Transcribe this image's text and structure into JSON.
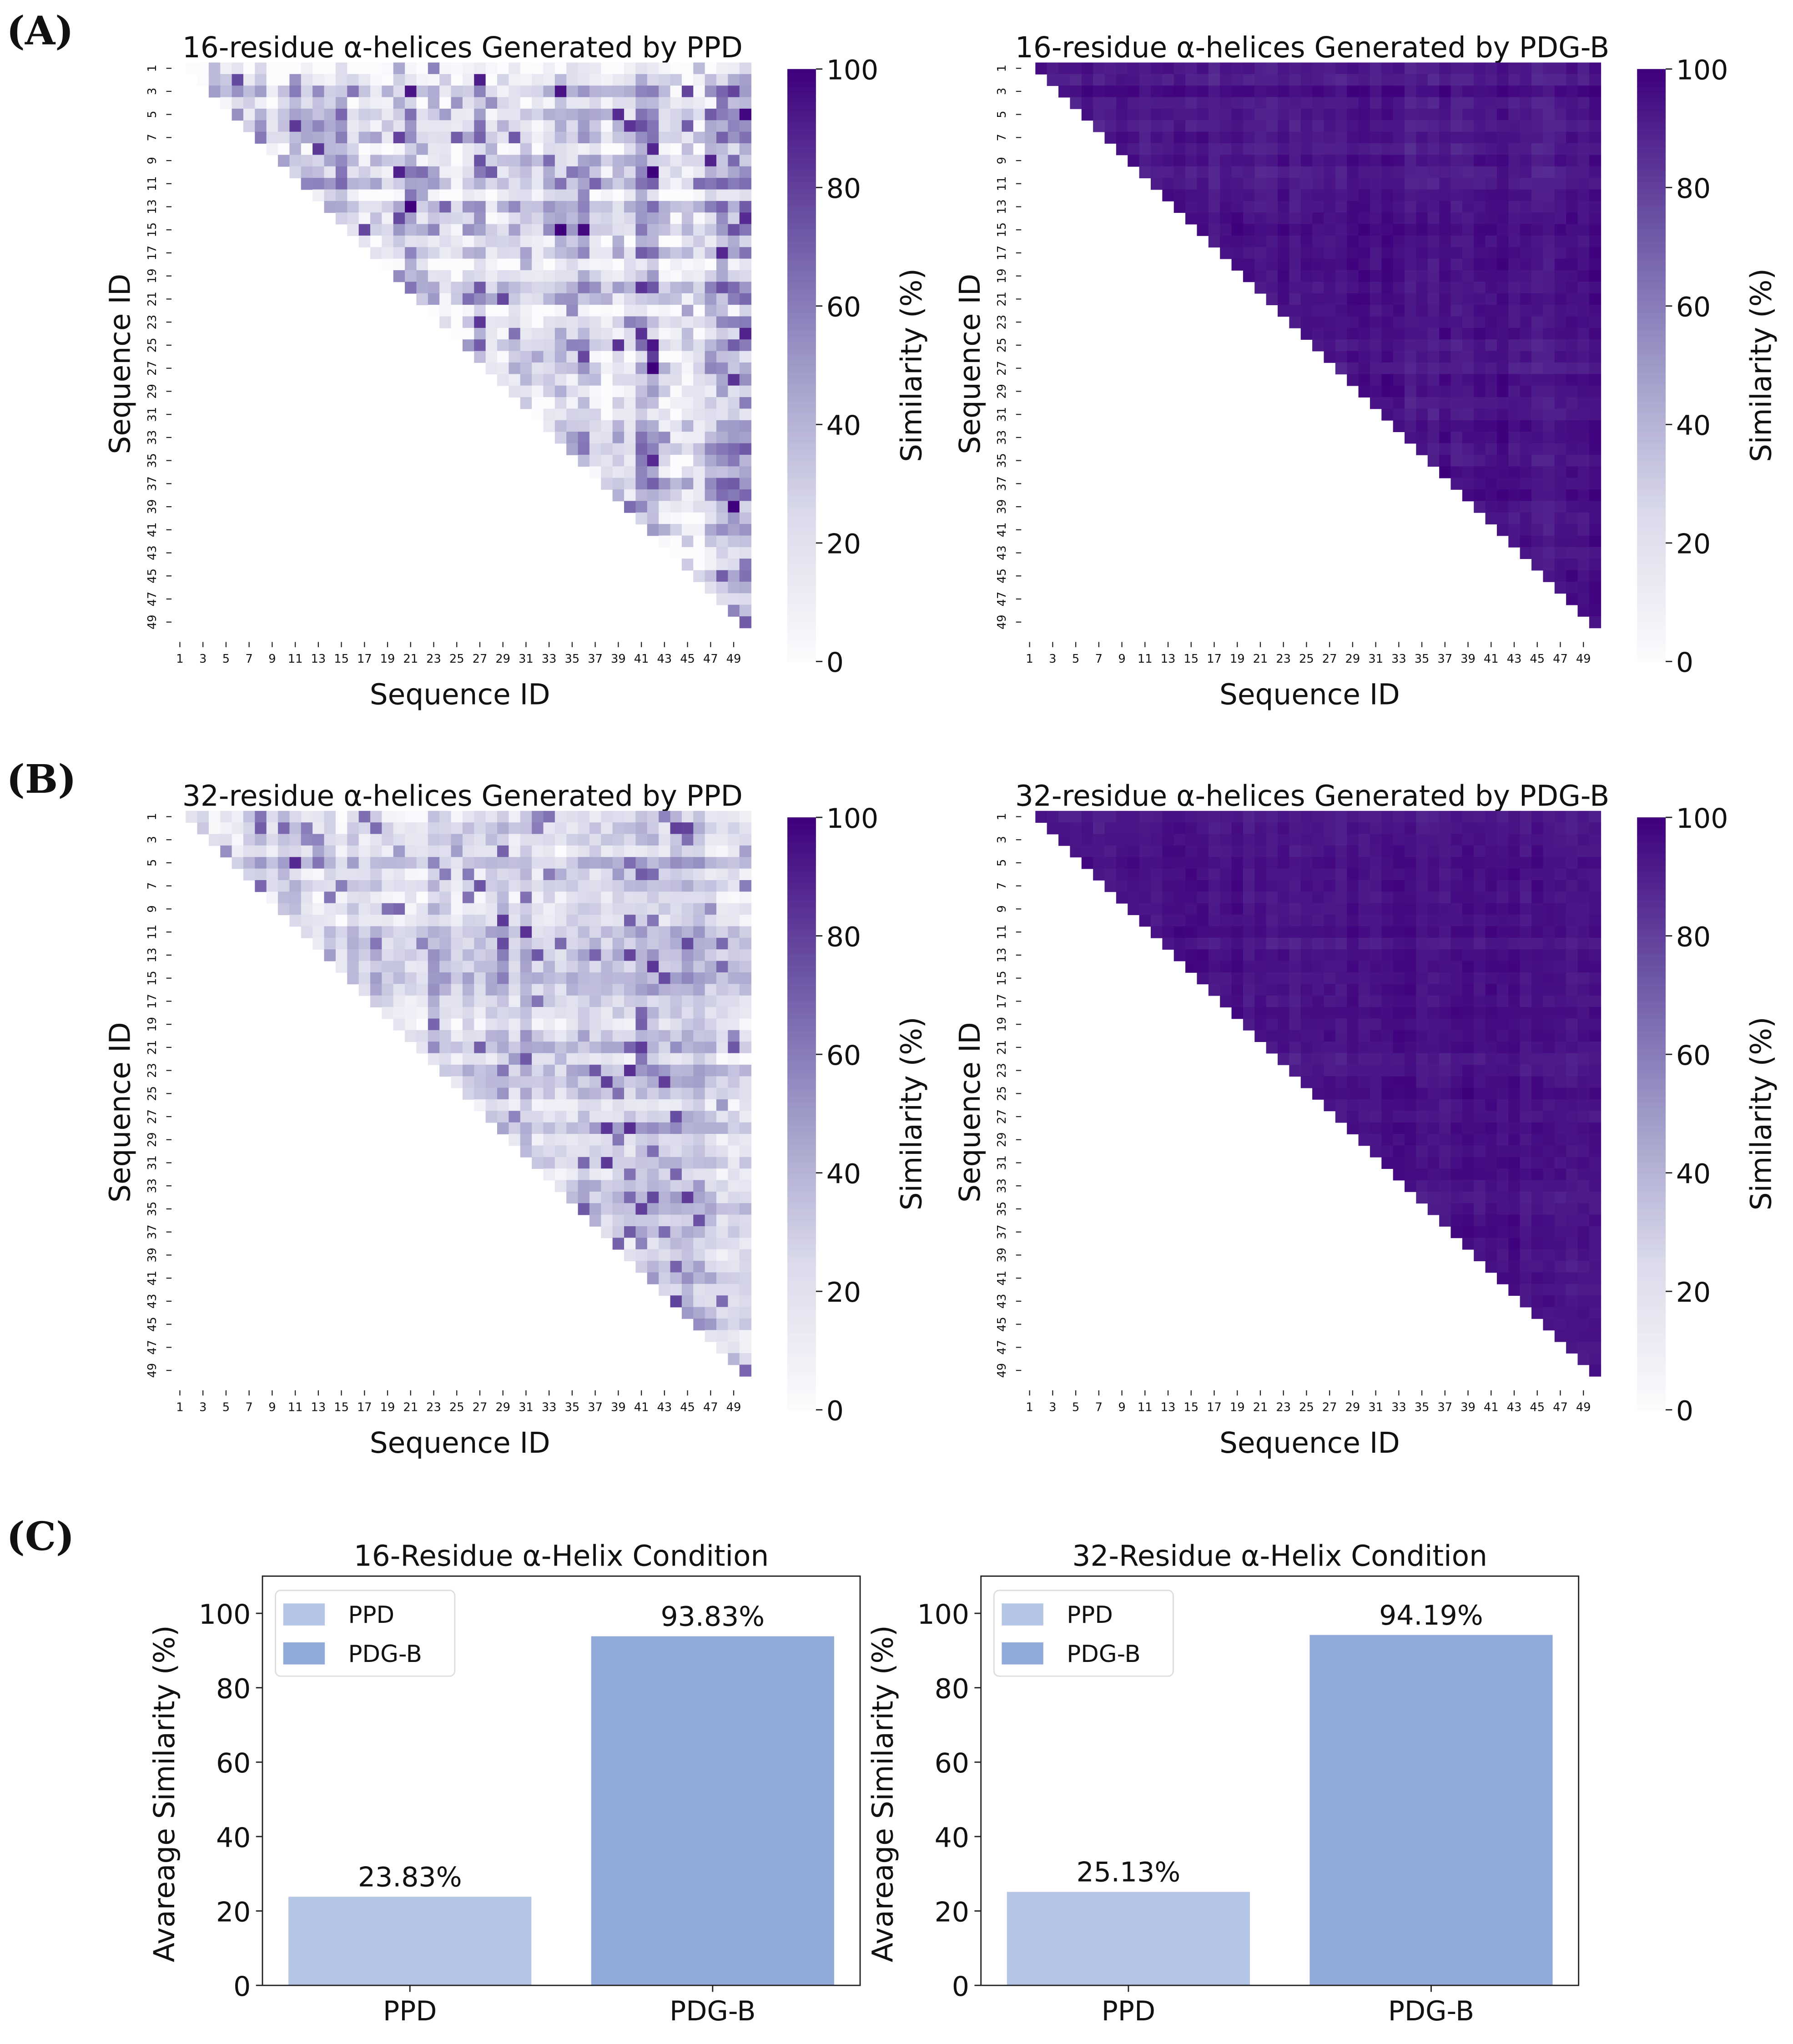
{
  "panels": [
    "(A)",
    "(B)",
    "(C)"
  ],
  "colormap": {
    "name": "Purples",
    "stops": [
      "#fcfbfd",
      "#dadaeb",
      "#9e9ac8",
      "#6a51a3",
      "#3f007d"
    ]
  },
  "chart_data": [
    {
      "type": "heatmap",
      "panel": "(A)",
      "title": "16-residue α-helices Generated by PPD",
      "xlabel": "Sequence ID",
      "ylabel": "Sequence ID",
      "colorbar_label": "Similarity (%)",
      "colorbar_ticks": [
        "0",
        "20",
        "40",
        "60",
        "80",
        "100"
      ],
      "vmin": 0,
      "vmax": 100,
      "n": 50,
      "mask": "lower-triangle",
      "mean_value": 23.83,
      "spread": 26,
      "tick_labels": [
        "1",
        "3",
        "5",
        "7",
        "9",
        "11",
        "13",
        "15",
        "17",
        "19",
        "21",
        "23",
        "25",
        "27",
        "29",
        "31",
        "33",
        "35",
        "37",
        "39",
        "41",
        "43",
        "45",
        "47",
        "49"
      ]
    },
    {
      "type": "heatmap",
      "panel": "(A)",
      "title": "16-residue α-helices Generated by PDG-B",
      "xlabel": "Sequence ID",
      "ylabel": "Sequence ID",
      "colorbar_label": "Similarity (%)",
      "colorbar_ticks": [
        "0",
        "20",
        "40",
        "60",
        "80",
        "100"
      ],
      "vmin": 0,
      "vmax": 100,
      "n": 50,
      "mask": "lower-triangle",
      "mean_value": 93.83,
      "spread": 6,
      "tick_labels": [
        "1",
        "3",
        "5",
        "7",
        "9",
        "11",
        "13",
        "15",
        "17",
        "19",
        "21",
        "23",
        "25",
        "27",
        "29",
        "31",
        "33",
        "35",
        "37",
        "39",
        "41",
        "43",
        "45",
        "47",
        "49"
      ]
    },
    {
      "type": "heatmap",
      "panel": "(B)",
      "title": "32-residue α-helices Generated by PPD",
      "xlabel": "Sequence ID",
      "ylabel": "Sequence ID",
      "colorbar_label": "Similarity (%)",
      "colorbar_ticks": [
        "0",
        "20",
        "40",
        "60",
        "80",
        "100"
      ],
      "vmin": 0,
      "vmax": 100,
      "n": 50,
      "mask": "lower-triangle",
      "mean_value": 25.13,
      "spread": 16,
      "tick_labels": [
        "1",
        "3",
        "5",
        "7",
        "9",
        "11",
        "13",
        "15",
        "17",
        "19",
        "21",
        "23",
        "25",
        "27",
        "29",
        "31",
        "33",
        "35",
        "37",
        "39",
        "41",
        "43",
        "45",
        "47",
        "49"
      ]
    },
    {
      "type": "heatmap",
      "panel": "(B)",
      "title": "32-residue α-helices Generated by PDG-B",
      "xlabel": "Sequence ID",
      "ylabel": "Sequence ID",
      "colorbar_label": "Similarity (%)",
      "colorbar_ticks": [
        "0",
        "20",
        "40",
        "60",
        "80",
        "100"
      ],
      "vmin": 0,
      "vmax": 100,
      "n": 50,
      "mask": "lower-triangle",
      "mean_value": 94.19,
      "spread": 5,
      "tick_labels": [
        "1",
        "3",
        "5",
        "7",
        "9",
        "11",
        "13",
        "15",
        "17",
        "19",
        "21",
        "23",
        "25",
        "27",
        "29",
        "31",
        "33",
        "35",
        "37",
        "39",
        "41",
        "43",
        "45",
        "47",
        "49"
      ]
    },
    {
      "type": "bar",
      "panel": "(C)",
      "title": "16-Residue α-Helix Condition",
      "categories": [
        "PPD",
        "PDG-B"
      ],
      "values": [
        23.83,
        93.83
      ],
      "data_labels": [
        "23.83%",
        "93.83%"
      ],
      "colors": [
        "#b4c5e6",
        "#91aad9"
      ],
      "ylabel": "Avareage Similarity (%)",
      "ylim": [
        0,
        110
      ],
      "yticks": [
        "0",
        "20",
        "40",
        "60",
        "80",
        "100"
      ],
      "legend": [
        "PPD",
        "PDG-B"
      ],
      "legend_position": "top-left"
    },
    {
      "type": "bar",
      "panel": "(C)",
      "title": "32-Residue α-Helix Condition",
      "categories": [
        "PPD",
        "PDG-B"
      ],
      "values": [
        25.13,
        94.19
      ],
      "data_labels": [
        "25.13%",
        "94.19%"
      ],
      "colors": [
        "#b4c5e6",
        "#91aad9"
      ],
      "ylabel": "Avareage Similarity (%)",
      "ylim": [
        0,
        110
      ],
      "yticks": [
        "0",
        "20",
        "40",
        "60",
        "80",
        "100"
      ],
      "legend": [
        "PPD",
        "PDG-B"
      ],
      "legend_position": "top-left"
    }
  ]
}
